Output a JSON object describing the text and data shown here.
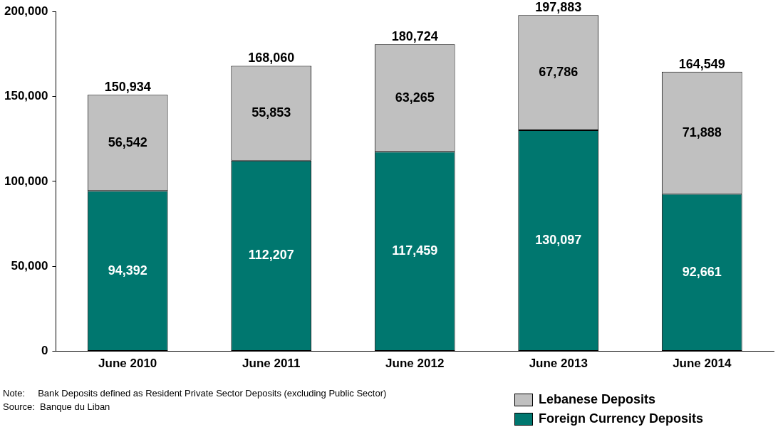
{
  "chart_data": {
    "type": "bar",
    "stacked": true,
    "categories": [
      "June 2010",
      "June 2011",
      "June 2012",
      "June 2013",
      "June 2014"
    ],
    "series": [
      {
        "name": "Foreign Currency Deposits",
        "color": "#00776f",
        "values": [
          94392,
          112207,
          117459,
          130097,
          92661
        ],
        "value_labels": [
          "94,392",
          "112,207",
          "117,459",
          "130,097",
          "92,661"
        ]
      },
      {
        "name": "Lebanese Deposits",
        "color": "#c0c0c0",
        "values": [
          56542,
          55853,
          63265,
          67786,
          71888
        ],
        "value_labels": [
          "56,542",
          "55,853",
          "63,265",
          "67,786",
          "71,888"
        ]
      }
    ],
    "totals": [
      "150,934",
      "168,060",
      "180,724",
      "197,883",
      "164,549"
    ],
    "ylim": [
      0,
      200000
    ],
    "yticks": [
      {
        "value": 0,
        "label": "0"
      },
      {
        "value": 50000,
        "label": "50,000"
      },
      {
        "value": 100000,
        "label": "100,000"
      },
      {
        "value": 150000,
        "label": "150,000"
      },
      {
        "value": 200000,
        "label": "200,000"
      }
    ],
    "grid": false,
    "legend": "bottom right",
    "annotations": [
      "Note:     Bank Deposits defined as Resident Private Sector Deposits (excluding Public Sector)",
      "Source:  Banque du Liban"
    ]
  }
}
